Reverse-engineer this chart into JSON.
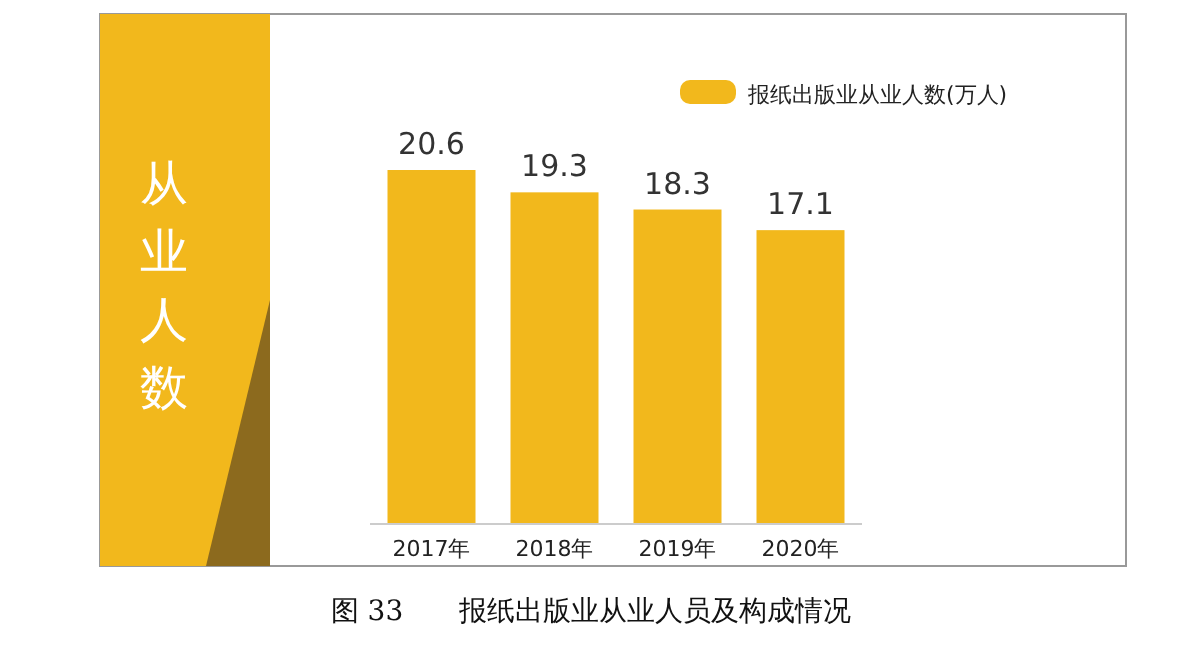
{
  "chart_data": {
    "type": "bar",
    "title": "图 33　　报纸出版业从业人员及构成情况",
    "annotations": [
      "从业人数"
    ],
    "categories": [
      "2017年",
      "2018年",
      "2019年",
      "2020年"
    ],
    "series": [
      {
        "name": "报纸出版业从业人数(万人)",
        "color": "#f2b81c",
        "values": [
          20.6,
          19.3,
          18.3,
          17.1
        ]
      }
    ],
    "data_labels": true,
    "legend": "top right"
  }
}
